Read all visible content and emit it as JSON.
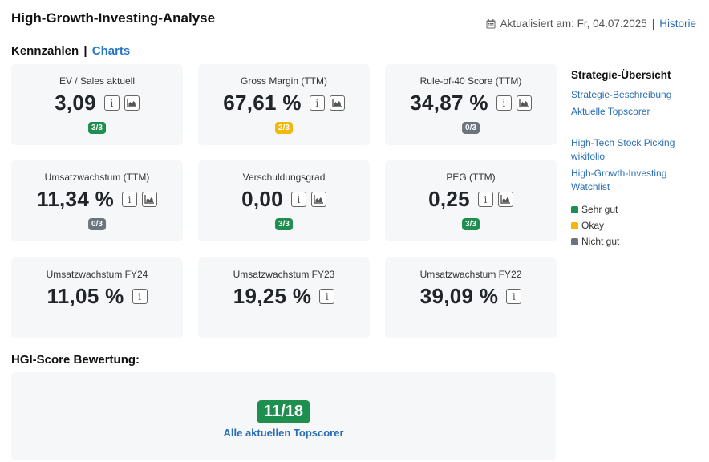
{
  "header": {
    "title": "High-Growth-Investing-Analyse",
    "updated_text": "Aktualisiert am: Fr, 04.07.2025",
    "separator": "|",
    "history_link": "Historie"
  },
  "subheader": {
    "kennzahlen": "Kennzahlen",
    "separator": "|",
    "charts_link": "Charts"
  },
  "cards": [
    {
      "label": "EV / Sales aktuell",
      "value": "3,09",
      "badge": "3/3",
      "status": "green"
    },
    {
      "label": "Gross Margin (TTM)",
      "value": "67,61 %",
      "badge": "2/3",
      "status": "yellow"
    },
    {
      "label": "Rule-of-40 Score (TTM)",
      "value": "34,87 %",
      "badge": "0/3",
      "status": "grey"
    },
    {
      "label": "Umsatzwachstum (TTM)",
      "value": "11,34 %",
      "badge": "0/3",
      "status": "grey"
    },
    {
      "label": "Verschuldungsgrad",
      "value": "0,00",
      "badge": "3/3",
      "status": "green"
    },
    {
      "label": "PEG (TTM)",
      "value": "0,25",
      "badge": "3/3",
      "status": "green"
    },
    {
      "label": "Umsatzwachstum FY24",
      "value": "11,05 %"
    },
    {
      "label": "Umsatzwachstum FY23",
      "value": "19,25 %"
    },
    {
      "label": "Umsatzwachstum FY22",
      "value": "39,09 %"
    }
  ],
  "icons": {
    "info": "info-icon",
    "chart": "chart-icon",
    "calendar": "calendar-icon"
  },
  "info_glyph": "i",
  "sidebar": {
    "title": "Strategie-Übersicht",
    "links": [
      "Strategie-Beschreibung",
      "Aktuelle Topscorer"
    ],
    "links2": [
      "High-Tech Stock Picking wikifolio",
      "High-Growth-Investing Watchlist"
    ],
    "legend": [
      {
        "label": "Sehr gut",
        "color": "#1e8f4e"
      },
      {
        "label": "Okay",
        "color": "#f2b90c"
      },
      {
        "label": "Nicht gut",
        "color": "#6c757d"
      }
    ]
  },
  "hgi": {
    "title": "HGI-Score Bewertung:",
    "score": "11/18",
    "link": "Alle aktuellen Topscorer"
  },
  "colors": {
    "accent": "#2a6fb5",
    "green": "#1e8f4e",
    "yellow": "#f2b90c",
    "grey": "#6c757d",
    "card_bg": "#f5f7f9"
  }
}
